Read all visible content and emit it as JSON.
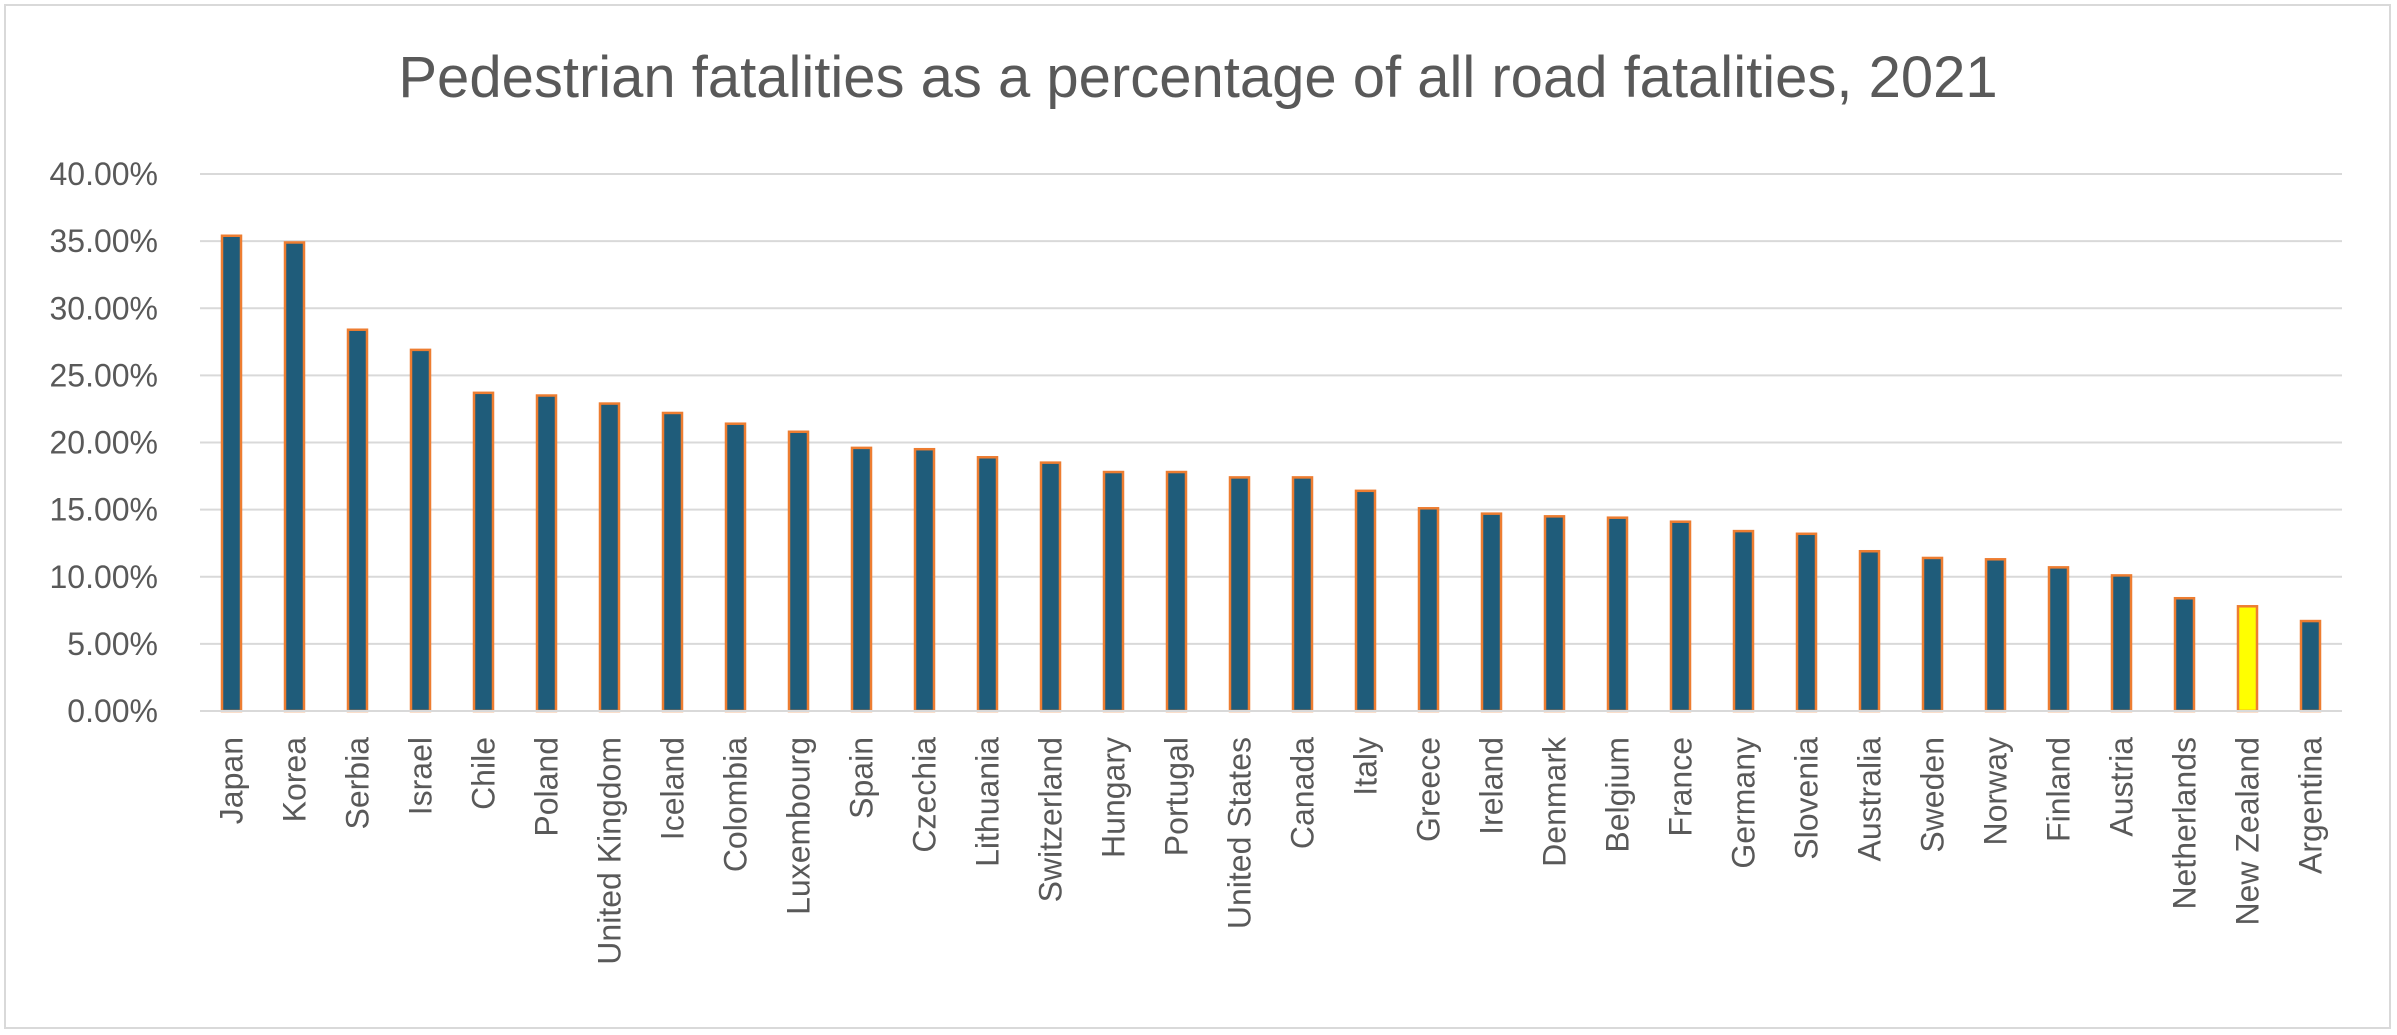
{
  "chart_data": {
    "type": "bar",
    "title": "Pedestrian fatalities as a percentage of all road fatalities, 2021",
    "xlabel": "",
    "ylabel": "",
    "ylim": [
      0,
      40
    ],
    "y_ticks": [
      "0.00%",
      "5.00%",
      "10.00%",
      "15.00%",
      "20.00%",
      "25.00%",
      "30.00%",
      "35.00%",
      "40.00%"
    ],
    "grid": true,
    "legend": "none",
    "bar_color": "#1f5c7a",
    "bar_edge_color": "#ed7d31",
    "highlight_color": "#ffff00",
    "highlight_category": "New Zealand",
    "categories": [
      "Japan",
      "Korea",
      "Serbia",
      "Israel",
      "Chile",
      "Poland",
      "United Kingdom",
      "Iceland",
      "Colombia",
      "Luxembourg",
      "Spain",
      "Czechia",
      "Lithuania",
      "Switzerland",
      "Hungary",
      "Portugal",
      "United States",
      "Canada",
      "Italy",
      "Greece",
      "Ireland",
      "Denmark",
      "Belgium",
      "France",
      "Germany",
      "Slovenia",
      "Australia",
      "Sweden",
      "Norway",
      "Finland",
      "Austria",
      "Netherlands",
      "New Zealand",
      "Argentina"
    ],
    "values": [
      35.4,
      34.9,
      28.4,
      26.9,
      23.7,
      23.5,
      22.9,
      22.2,
      21.4,
      20.8,
      19.6,
      19.5,
      18.9,
      18.5,
      17.8,
      17.8,
      17.4,
      17.4,
      16.4,
      15.1,
      14.7,
      14.5,
      14.4,
      14.1,
      13.4,
      13.2,
      11.9,
      11.4,
      11.3,
      10.7,
      10.1,
      8.4,
      7.8,
      6.7
    ]
  }
}
